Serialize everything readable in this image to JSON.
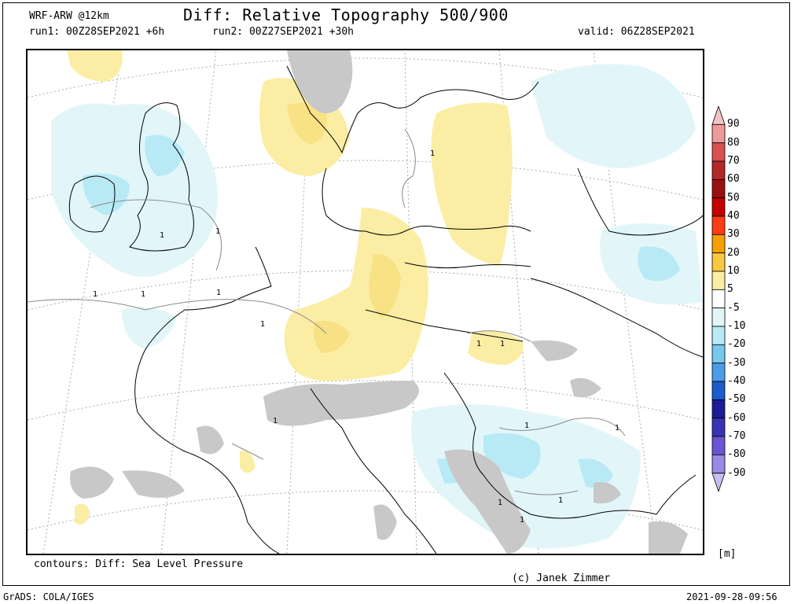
{
  "header": {
    "model": "WRF-ARW @12km",
    "title": "Diff: Relative Topography 500/900",
    "run1": "run1: 00Z28SEP2021 +6h",
    "run2": "run2: 00Z27SEP2021 +30h",
    "valid": "valid: 06Z28SEP2021"
  },
  "footer": {
    "contours": "contours: Diff: Sea Level Pressure",
    "copyright": "(c) Janek Zimmer",
    "software": "GrADS: COLA/IGES",
    "timestamp": "2021-09-28-09:56"
  },
  "legend": {
    "unit": "[m]",
    "items": [
      {
        "label": "90",
        "color": "#f4c4c4"
      },
      {
        "label": "80",
        "color": "#ee9a9a"
      },
      {
        "label": "70",
        "color": "#d85050"
      },
      {
        "label": "60",
        "color": "#b42828"
      },
      {
        "label": "50",
        "color": "#9a1010"
      },
      {
        "label": "40",
        "color": "#c40000"
      },
      {
        "label": "30",
        "color": "#ff3c14"
      },
      {
        "label": "20",
        "color": "#f5a000"
      },
      {
        "label": "10",
        "color": "#f8c840"
      },
      {
        "label": "5",
        "color": "#fbeea4"
      },
      {
        "label": "-5",
        "color": "#ffffff"
      },
      {
        "label": "-10",
        "color": "#e2f6fa"
      },
      {
        "label": "-20",
        "color": "#b8eaf6"
      },
      {
        "label": "-30",
        "color": "#78c8ee"
      },
      {
        "label": "-40",
        "color": "#4a9ce8"
      },
      {
        "label": "-50",
        "color": "#1c5ccc"
      },
      {
        "label": "-60",
        "color": "#1c1c96"
      },
      {
        "label": "-70",
        "color": "#3a32b4"
      },
      {
        "label": "-80",
        "color": "#6a56d4"
      },
      {
        "label": "-90",
        "color": "#9a8ae6"
      },
      {
        "label": "",
        "color": "#c8beee"
      }
    ]
  },
  "map": {
    "contour_labels": [
      "1",
      "1",
      "1",
      "1",
      "1",
      "1",
      "1",
      "1",
      "1",
      "1",
      "1",
      "1",
      "1",
      "1",
      "1"
    ]
  }
}
